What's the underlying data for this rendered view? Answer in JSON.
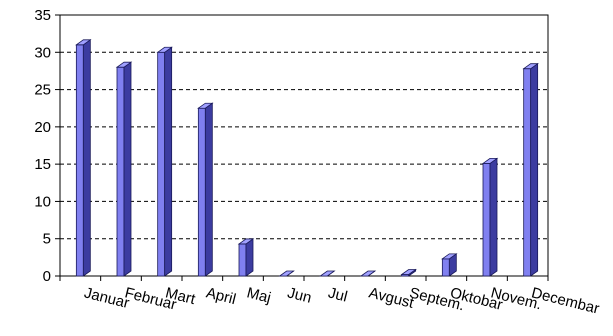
{
  "chart_data": {
    "type": "bar",
    "categories": [
      "Januar",
      "Februar",
      "Mart",
      "April",
      "Maj",
      "Jun",
      "Jul",
      "Avgust",
      "Septem.",
      "Oktobar",
      "Novem.",
      "Decembar"
    ],
    "series": [
      {
        "values": [
          31,
          28,
          30,
          22.5,
          4.3,
          0,
          0,
          0,
          0.2,
          2.3,
          15.1,
          27.8
        ]
      }
    ],
    "yticks": [
      "0",
      "5",
      "10",
      "15",
      "20",
      "25",
      "30",
      "35"
    ],
    "ylim": [
      0,
      35
    ],
    "grid": "horizontal dashed",
    "bar_style": "3d",
    "colors": {
      "bar_front": "#8080f0",
      "bar_side": "#3c3ca0",
      "bar_top": "#a0a0ff",
      "edge": "#1a1a5a"
    },
    "xlabel": "",
    "ylabel": "",
    "title": ""
  }
}
